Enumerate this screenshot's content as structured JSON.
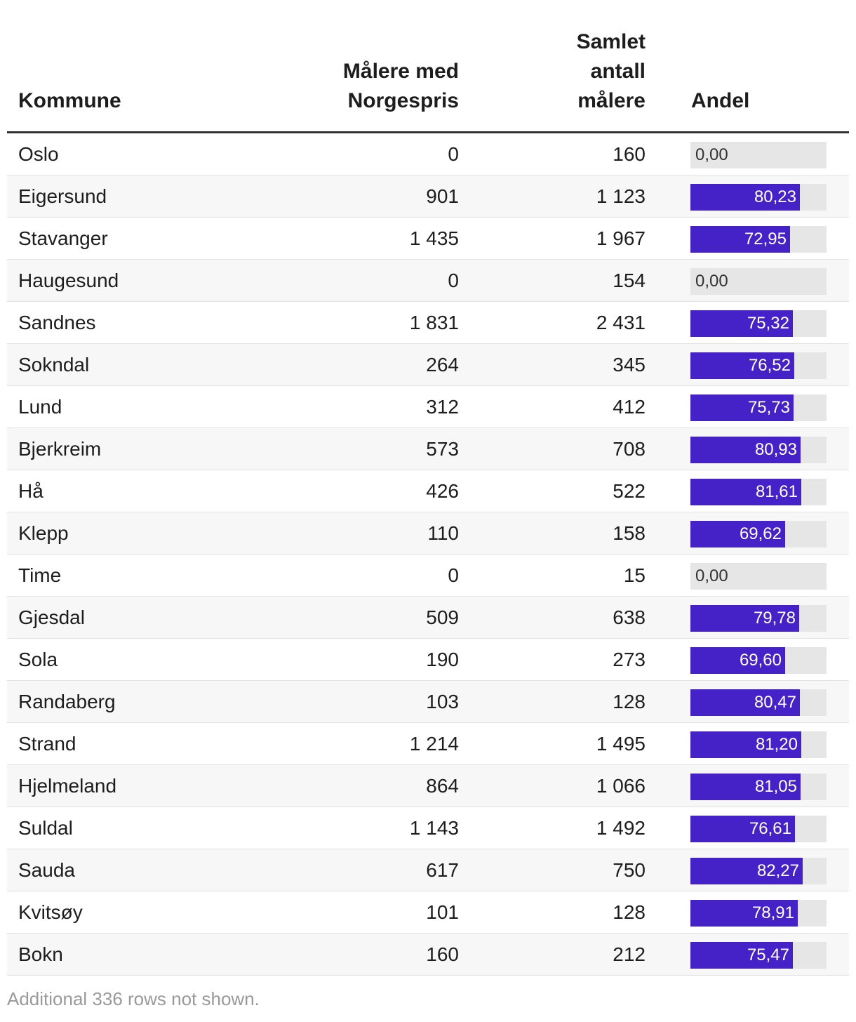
{
  "table": {
    "headers": {
      "kommune": "Kommune",
      "malere_line1": "Målere med",
      "malere_line2": "Norgespris",
      "samlet_line1": "Samlet",
      "samlet_line2": "antall",
      "samlet_line3": "målere",
      "andel": "Andel"
    },
    "footer": "Additional 336 rows not shown."
  },
  "colors": {
    "bar": "#4422c8",
    "track": "#e6e6e6"
  },
  "chart_data": {
    "type": "table",
    "columns": [
      "Kommune",
      "Målere med Norgespris",
      "Samlet antall målere",
      "Andel"
    ],
    "andel_max": 100,
    "rows": [
      {
        "kommune": "Oslo",
        "malere": "0",
        "samlet": "160",
        "andel": 0.0,
        "andel_label": "0,00"
      },
      {
        "kommune": "Eigersund",
        "malere": "901",
        "samlet": "1 123",
        "andel": 80.23,
        "andel_label": "80,23"
      },
      {
        "kommune": "Stavanger",
        "malere": "1 435",
        "samlet": "1 967",
        "andel": 72.95,
        "andel_label": "72,95"
      },
      {
        "kommune": "Haugesund",
        "malere": "0",
        "samlet": "154",
        "andel": 0.0,
        "andel_label": "0,00"
      },
      {
        "kommune": "Sandnes",
        "malere": "1 831",
        "samlet": "2 431",
        "andel": 75.32,
        "andel_label": "75,32"
      },
      {
        "kommune": "Sokndal",
        "malere": "264",
        "samlet": "345",
        "andel": 76.52,
        "andel_label": "76,52"
      },
      {
        "kommune": "Lund",
        "malere": "312",
        "samlet": "412",
        "andel": 75.73,
        "andel_label": "75,73"
      },
      {
        "kommune": "Bjerkreim",
        "malere": "573",
        "samlet": "708",
        "andel": 80.93,
        "andel_label": "80,93"
      },
      {
        "kommune": "Hå",
        "malere": "426",
        "samlet": "522",
        "andel": 81.61,
        "andel_label": "81,61"
      },
      {
        "kommune": "Klepp",
        "malere": "110",
        "samlet": "158",
        "andel": 69.62,
        "andel_label": "69,62"
      },
      {
        "kommune": "Time",
        "malere": "0",
        "samlet": "15",
        "andel": 0.0,
        "andel_label": "0,00"
      },
      {
        "kommune": "Gjesdal",
        "malere": "509",
        "samlet": "638",
        "andel": 79.78,
        "andel_label": "79,78"
      },
      {
        "kommune": "Sola",
        "malere": "190",
        "samlet": "273",
        "andel": 69.6,
        "andel_label": "69,60"
      },
      {
        "kommune": "Randaberg",
        "malere": "103",
        "samlet": "128",
        "andel": 80.47,
        "andel_label": "80,47"
      },
      {
        "kommune": "Strand",
        "malere": "1 214",
        "samlet": "1 495",
        "andel": 81.2,
        "andel_label": "81,20"
      },
      {
        "kommune": "Hjelmeland",
        "malere": "864",
        "samlet": "1 066",
        "andel": 81.05,
        "andel_label": "81,05"
      },
      {
        "kommune": "Suldal",
        "malere": "1 143",
        "samlet": "1 492",
        "andel": 76.61,
        "andel_label": "76,61"
      },
      {
        "kommune": "Sauda",
        "malere": "617",
        "samlet": "750",
        "andel": 82.27,
        "andel_label": "82,27"
      },
      {
        "kommune": "Kvitsøy",
        "malere": "101",
        "samlet": "128",
        "andel": 78.91,
        "andel_label": "78,91"
      },
      {
        "kommune": "Bokn",
        "malere": "160",
        "samlet": "212",
        "andel": 75.47,
        "andel_label": "75,47"
      }
    ]
  }
}
